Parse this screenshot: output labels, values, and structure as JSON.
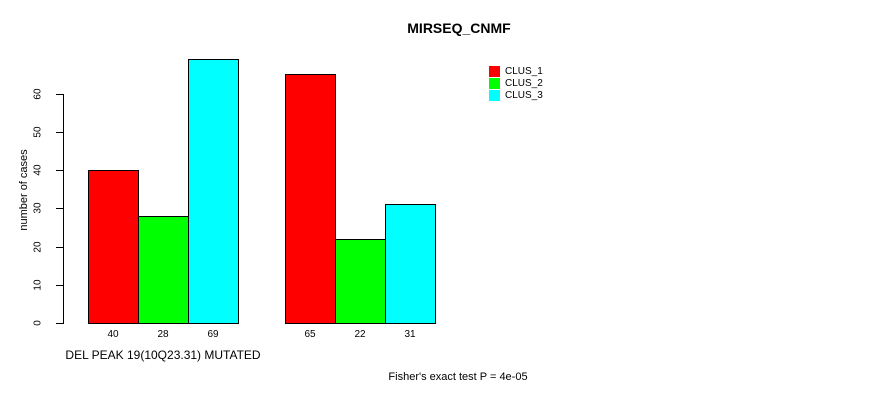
{
  "chart_data": {
    "type": "bar",
    "title": "MIRSEQ_CNMF",
    "ylabel": "number of cases",
    "footer": "Fisher's exact test P = 4e-05",
    "yticks": [
      0,
      10,
      20,
      30,
      40,
      50,
      60
    ],
    "ylim": [
      0,
      69
    ],
    "grid": false,
    "legend_position": "top-right",
    "series": [
      {
        "name": "CLUS_1",
        "color": "#ff0000"
      },
      {
        "name": "CLUS_2",
        "color": "#00ff00"
      },
      {
        "name": "CLUS_3",
        "color": "#00ffff"
      }
    ],
    "groups": [
      {
        "label": "DEL PEAK 19(10Q23.31) MUTATED",
        "values": [
          40,
          28,
          69
        ]
      },
      {
        "label": "",
        "values": [
          65,
          22,
          31
        ]
      }
    ]
  }
}
